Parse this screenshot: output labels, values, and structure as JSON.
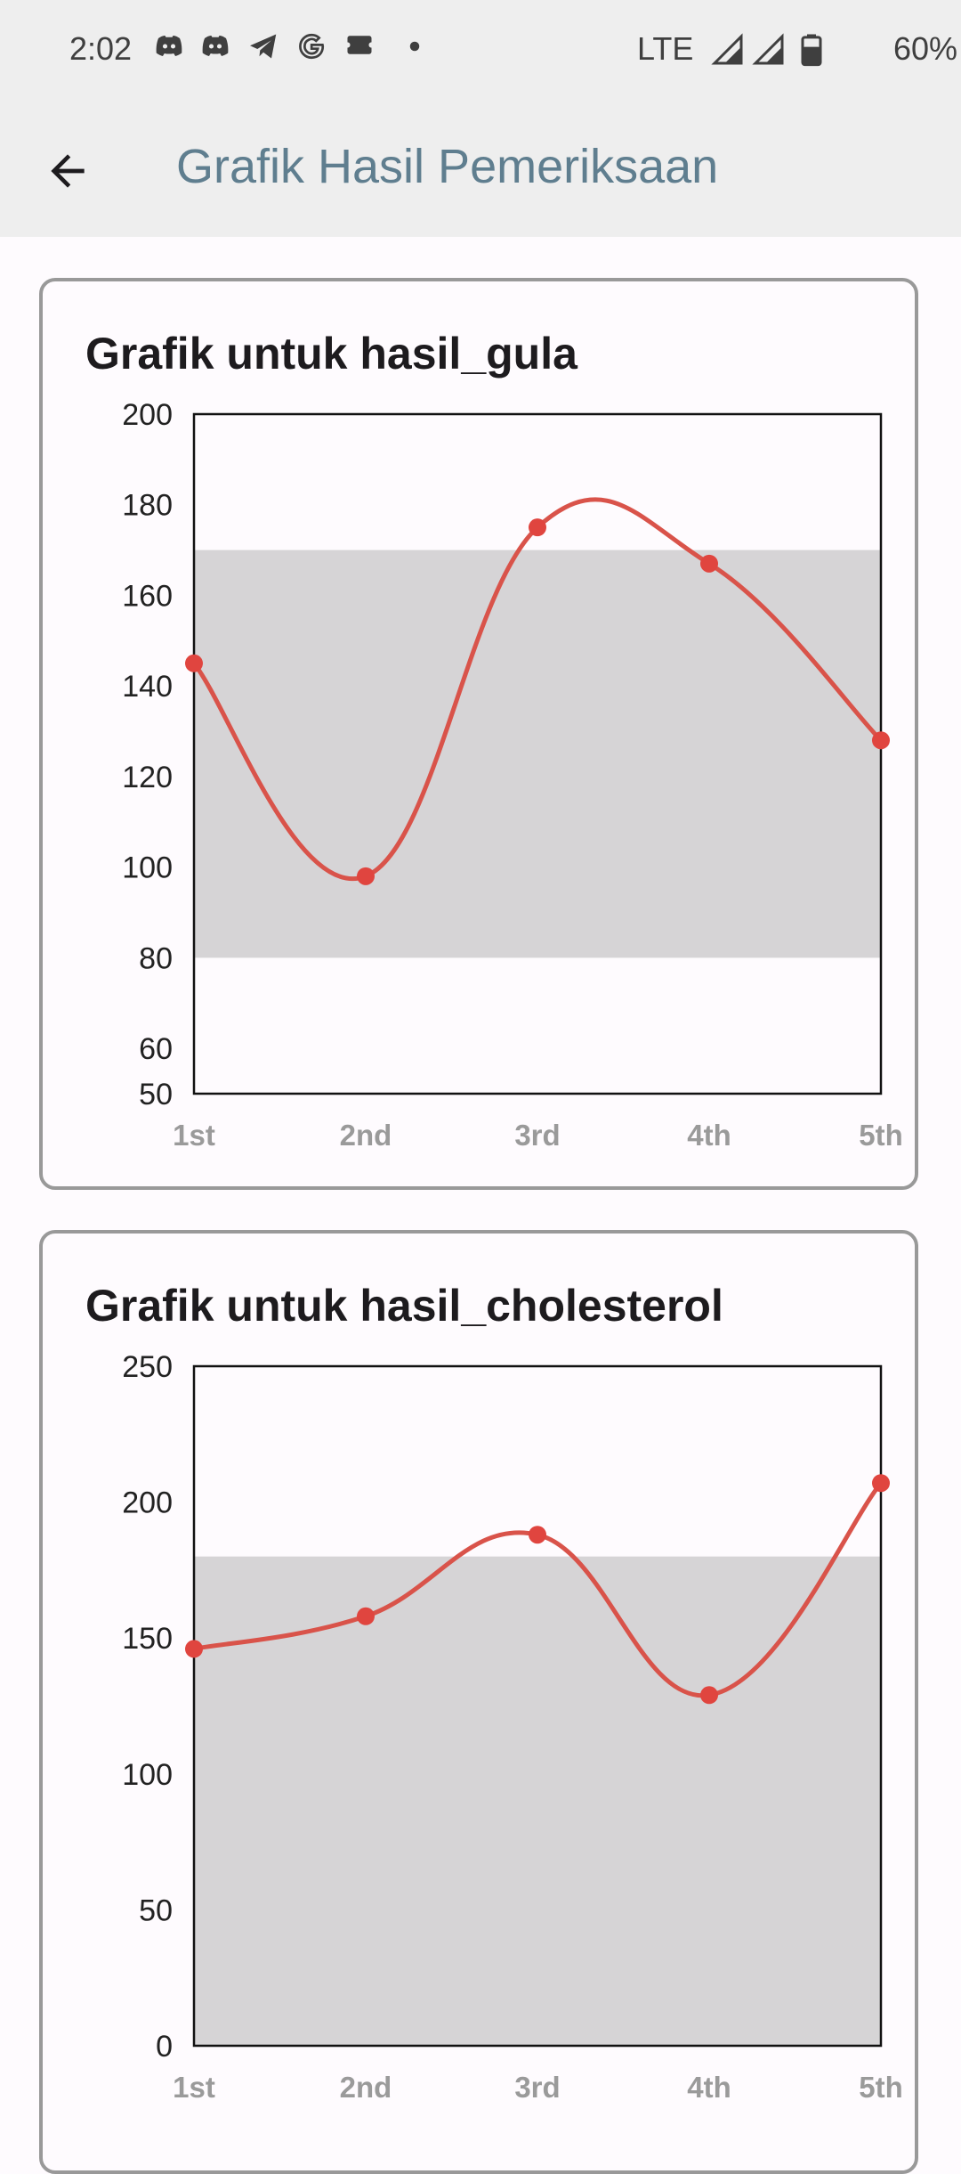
{
  "status_bar": {
    "time": "2:02",
    "network": "LTE",
    "battery": "60%",
    "icons": [
      "discord-icon",
      "discord-icon",
      "telegram-icon",
      "google-icon",
      "message-icon",
      "dot-icon"
    ]
  },
  "app_bar": {
    "title": "Grafik Hasil Pemeriksaan",
    "back_icon": "arrow-back-icon"
  },
  "colors": {
    "line": "#d9534a",
    "point": "#e0453f",
    "normal_band": "#d6d4d6",
    "card_border": "#999999",
    "title": "#5f7e8f"
  },
  "chart_data": [
    {
      "type": "line",
      "title": "Grafik untuk hasil_gula",
      "categories": [
        "1st",
        "2nd",
        "3rd",
        "4th",
        "5th"
      ],
      "values": [
        145,
        98,
        175,
        167,
        128
      ],
      "yticks": [
        50,
        60,
        80,
        100,
        120,
        140,
        160,
        180,
        200
      ],
      "ylim": [
        50,
        200
      ],
      "normal_range": [
        80,
        170
      ],
      "smooth": true
    },
    {
      "type": "line",
      "title": "Grafik untuk hasil_cholesterol",
      "categories": [
        "1st",
        "2nd",
        "3rd",
        "4th",
        "5th"
      ],
      "values": [
        146,
        158,
        188,
        129,
        207
      ],
      "yticks": [
        0,
        50,
        100,
        150,
        200,
        250
      ],
      "ylim": [
        0,
        250
      ],
      "normal_range": [
        0,
        180
      ],
      "smooth": true
    }
  ]
}
